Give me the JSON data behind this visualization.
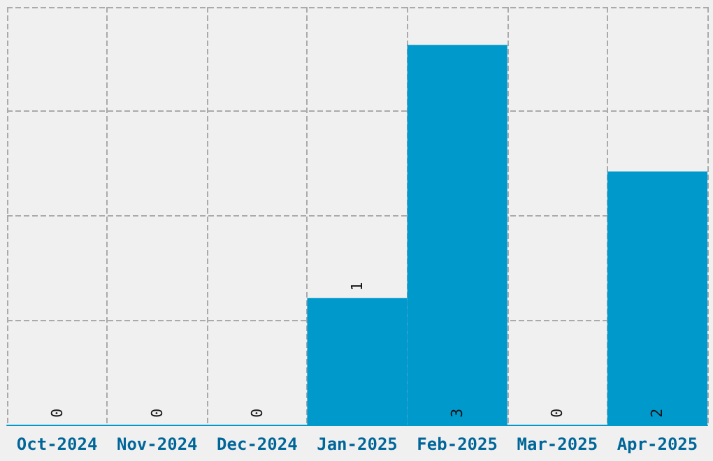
{
  "chart_data": {
    "type": "bar",
    "categories": [
      "Oct-2024",
      "Nov-2024",
      "Dec-2024",
      "Jan-2025",
      "Feb-2025",
      "Mar-2025",
      "Apr-2025"
    ],
    "values": [
      0,
      0,
      0,
      1,
      3,
      0,
      2
    ],
    "color": "#0099cc",
    "ylim": [
      0,
      3.3
    ],
    "yticks": [
      {
        "value": 0,
        "label": null
      },
      {
        "value": 0.825,
        "label": null
      },
      {
        "value": 1.65,
        "label": null
      },
      {
        "value": 2.475,
        "label": null
      },
      {
        "value": 3.3,
        "label": null
      }
    ],
    "tick_labels": "x",
    "grid": true,
    "data_labels": true
  }
}
